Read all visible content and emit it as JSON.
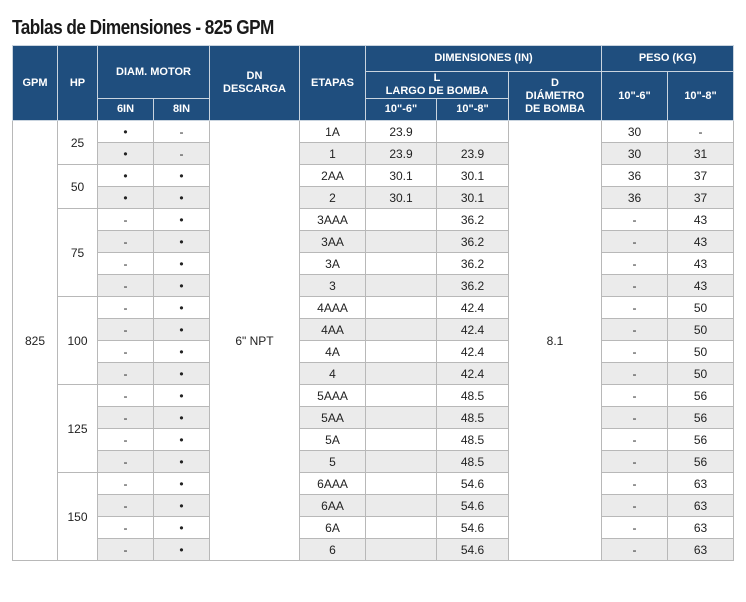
{
  "title": "Tablas de Dimensiones - 825 GPM",
  "headers": {
    "gpm": "GPM",
    "hp": "HP",
    "diam_motor": "DIAM. MOTOR",
    "in6": "6IN",
    "in8": "8IN",
    "dn_line1": "DN",
    "dn_line2": "DESCARGA",
    "etapas": "ETAPAS",
    "dimensiones": "DIMENSIONES (IN)",
    "l_line1": "L",
    "l_line2": "LARGO DE BOMBA",
    "d_line1": "D",
    "d_line2": "DIÁMETRO",
    "d_line3": "DE BOMBA",
    "l_10_6": "10\"-6\"",
    "l_10_8": "10\"-8\"",
    "peso": "PESO (KG)",
    "peso_10_6": "10\"-6\"",
    "peso_10_8": "10\"-8\""
  },
  "gpm_value": "825",
  "descarga_value": "6\" NPT",
  "diametro_value": "8.1",
  "hp_groups": [
    {
      "hp": "25",
      "rows": 2
    },
    {
      "hp": "50",
      "rows": 2
    },
    {
      "hp": "75",
      "rows": 4
    },
    {
      "hp": "100",
      "rows": 4
    },
    {
      "hp": "125",
      "rows": 4
    },
    {
      "hp": "150",
      "rows": 4
    }
  ],
  "rows": [
    {
      "in6": "•",
      "in8": "-",
      "etapa": "1A",
      "l6": "23.9",
      "l8": "",
      "p6": "30",
      "p8": "-"
    },
    {
      "in6": "•",
      "in8": "-",
      "etapa": "1",
      "l6": "23.9",
      "l8": "23.9",
      "p6": "30",
      "p8": "31"
    },
    {
      "in6": "•",
      "in8": "•",
      "etapa": "2AA",
      "l6": "30.1",
      "l8": "30.1",
      "p6": "36",
      "p8": "37"
    },
    {
      "in6": "•",
      "in8": "•",
      "etapa": "2",
      "l6": "30.1",
      "l8": "30.1",
      "p6": "36",
      "p8": "37"
    },
    {
      "in6": "-",
      "in8": "•",
      "etapa": "3AAA",
      "l6": "",
      "l8": "36.2",
      "p6": "-",
      "p8": "43"
    },
    {
      "in6": "-",
      "in8": "•",
      "etapa": "3AA",
      "l6": "",
      "l8": "36.2",
      "p6": "-",
      "p8": "43"
    },
    {
      "in6": "-",
      "in8": "•",
      "etapa": "3A",
      "l6": "",
      "l8": "36.2",
      "p6": "-",
      "p8": "43"
    },
    {
      "in6": "-",
      "in8": "•",
      "etapa": "3",
      "l6": "",
      "l8": "36.2",
      "p6": "-",
      "p8": "43"
    },
    {
      "in6": "-",
      "in8": "•",
      "etapa": "4AAA",
      "l6": "",
      "l8": "42.4",
      "p6": "-",
      "p8": "50"
    },
    {
      "in6": "-",
      "in8": "•",
      "etapa": "4AA",
      "l6": "",
      "l8": "42.4",
      "p6": "-",
      "p8": "50"
    },
    {
      "in6": "-",
      "in8": "•",
      "etapa": "4A",
      "l6": "",
      "l8": "42.4",
      "p6": "-",
      "p8": "50"
    },
    {
      "in6": "-",
      "in8": "•",
      "etapa": "4",
      "l6": "",
      "l8": "42.4",
      "p6": "-",
      "p8": "50"
    },
    {
      "in6": "-",
      "in8": "•",
      "etapa": "5AAA",
      "l6": "",
      "l8": "48.5",
      "p6": "-",
      "p8": "56"
    },
    {
      "in6": "-",
      "in8": "•",
      "etapa": "5AA",
      "l6": "",
      "l8": "48.5",
      "p6": "-",
      "p8": "56"
    },
    {
      "in6": "-",
      "in8": "•",
      "etapa": "5A",
      "l6": "",
      "l8": "48.5",
      "p6": "-",
      "p8": "56"
    },
    {
      "in6": "-",
      "in8": "•",
      "etapa": "5",
      "l6": "",
      "l8": "48.5",
      "p6": "-",
      "p8": "56"
    },
    {
      "in6": "-",
      "in8": "•",
      "etapa": "6AAA",
      "l6": "",
      "l8": "54.6",
      "p6": "-",
      "p8": "63"
    },
    {
      "in6": "-",
      "in8": "•",
      "etapa": "6AA",
      "l6": "",
      "l8": "54.6",
      "p6": "-",
      "p8": "63"
    },
    {
      "in6": "-",
      "in8": "•",
      "etapa": "6A",
      "l6": "",
      "l8": "54.6",
      "p6": "-",
      "p8": "63"
    },
    {
      "in6": "-",
      "in8": "•",
      "etapa": "6",
      "l6": "",
      "l8": "54.6",
      "p6": "-",
      "p8": "63"
    }
  ],
  "colors": {
    "header_bg": "#1f4e7e",
    "header_text": "#ffffff",
    "stripe": "#ebebeb"
  }
}
